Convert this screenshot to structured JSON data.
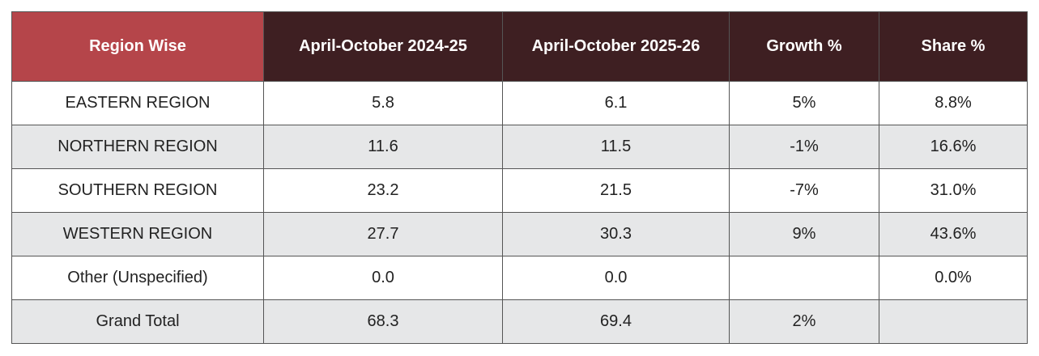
{
  "table": {
    "header": [
      "Region Wise",
      "April-October 2024-25",
      "April-October 2025-26",
      "Growth %",
      "Share %"
    ],
    "rows": [
      [
        "EASTERN REGION",
        "5.8",
        "6.1",
        "5%",
        "8.8%"
      ],
      [
        "NORTHERN REGION",
        "11.6",
        "11.5",
        "-1%",
        "16.6%"
      ],
      [
        "SOUTHERN REGION",
        "23.2",
        "21.5",
        "-7%",
        "31.0%"
      ],
      [
        "WESTERN REGION",
        "27.7",
        "30.3",
        "9%",
        "43.6%"
      ],
      [
        "Other (Unspecified)",
        "0.0",
        "0.0",
        null,
        "0.0%"
      ],
      [
        "Grand Total",
        "68.3",
        "69.4",
        "2%",
        null
      ]
    ]
  }
}
